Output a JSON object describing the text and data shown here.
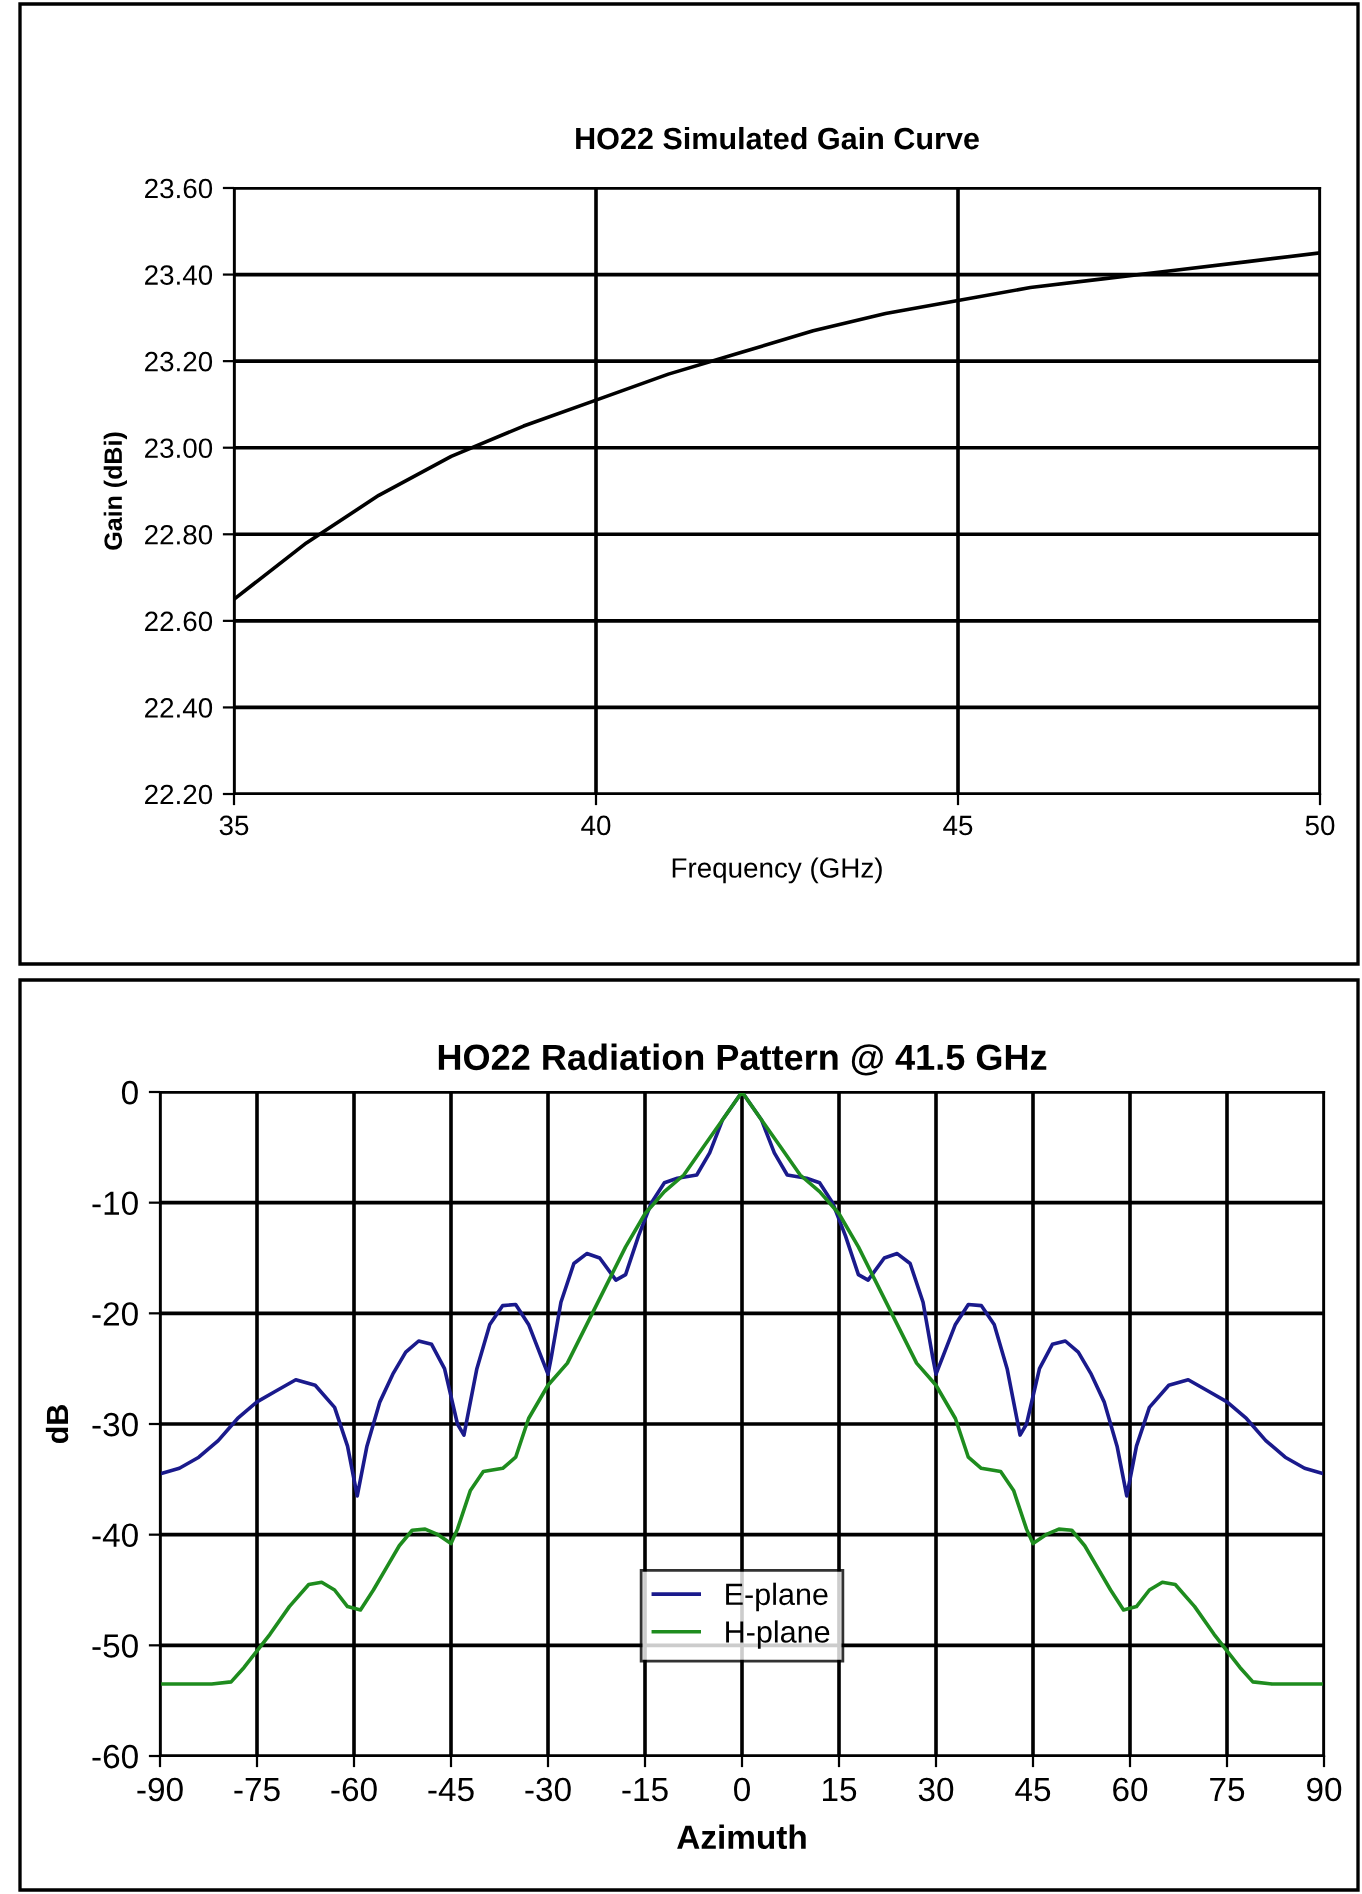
{
  "chart_data": [
    {
      "type": "line",
      "title": "HO22 Simulated Gain Curve",
      "xlabel": "Frequency (GHz)",
      "ylabel": "Gain (dBi)",
      "xlim": [
        35,
        50
      ],
      "xticks": [
        35,
        40,
        45,
        50
      ],
      "ylim": [
        22.2,
        23.6
      ],
      "yticks": [
        {
          "value": 22.2,
          "label": "22.20"
        },
        {
          "value": 22.4,
          "label": "22.40"
        },
        {
          "value": 22.6,
          "label": "22.60"
        },
        {
          "value": 22.8,
          "label": "22.80"
        },
        {
          "value": 23.0,
          "label": "23.00"
        },
        {
          "value": 23.2,
          "label": "23.20"
        },
        {
          "value": 23.4,
          "label": "23.40"
        },
        {
          "value": 23.6,
          "label": "23.60"
        }
      ],
      "grid": true,
      "legend": false,
      "series": [
        {
          "color": "#000000",
          "x": [
            35,
            36,
            37,
            38,
            39,
            40,
            41,
            42,
            43,
            44,
            45,
            46,
            47,
            48,
            49,
            50
          ],
          "values": [
            22.65,
            22.78,
            22.89,
            22.98,
            23.05,
            23.11,
            23.17,
            23.22,
            23.27,
            23.31,
            23.34,
            23.37,
            23.39,
            23.41,
            23.43,
            23.45
          ]
        }
      ]
    },
    {
      "type": "line",
      "title": "HO22 Radiation Pattern @ 41.5 GHz",
      "xlabel": "Azimuth",
      "ylabel": "dB",
      "xlim": [
        -90,
        90
      ],
      "xticks": [
        -90,
        -75,
        -60,
        -45,
        -30,
        -15,
        0,
        15,
        30,
        45,
        60,
        75,
        90
      ],
      "ylim": [
        -60,
        0
      ],
      "yticks": [
        -60,
        -50,
        -40,
        -30,
        -20,
        -10,
        0
      ],
      "grid": true,
      "legend": "bottom",
      "series": [
        {
          "name": "E-plane",
          "color": "#1a1a8c",
          "x": [
            -90,
            -87,
            -84,
            -81,
            -78,
            -75,
            -72,
            -69,
            -66,
            -63,
            -61,
            -59.5,
            -58,
            -56,
            -54,
            -52,
            -50,
            -48,
            -46,
            -44,
            -43,
            -41,
            -39,
            -37,
            -35,
            -33,
            -31,
            -30,
            -29.5,
            -28,
            -26,
            -24,
            -22,
            -19.5,
            -18,
            -16,
            -14,
            -12,
            -10,
            -7,
            -5,
            -3,
            0,
            3,
            5,
            7,
            10,
            12,
            14,
            16,
            18,
            19.5,
            22,
            24,
            26,
            28,
            29.5,
            30,
            31,
            33,
            35,
            37,
            39,
            41,
            43,
            44,
            46,
            48,
            50,
            52,
            54,
            56,
            58,
            59.5,
            61,
            63,
            66,
            69,
            72,
            75,
            78,
            81,
            84,
            87,
            90
          ],
          "values": [
            -34.5,
            -34,
            -33,
            -31.5,
            -29.5,
            -28,
            -27,
            -26,
            -26.5,
            -28.5,
            -32,
            -36.5,
            -32,
            -28,
            -25.5,
            -23.5,
            -22.5,
            -22.8,
            -25,
            -30,
            -31,
            -25,
            -21,
            -19.3,
            -19.2,
            -21,
            -24,
            -25.5,
            -24,
            -19,
            -15.5,
            -14.6,
            -15,
            -17,
            -16.5,
            -13,
            -10,
            -8.2,
            -7.8,
            -7.5,
            -5.5,
            -2.5,
            0,
            -2.5,
            -5.5,
            -7.5,
            -7.8,
            -8.2,
            -10,
            -13,
            -16.5,
            -17,
            -15,
            -14.6,
            -15.5,
            -19,
            -24,
            -25.5,
            -24,
            -21,
            -19.2,
            -19.3,
            -21,
            -25,
            -31,
            -30,
            -25,
            -22.8,
            -22.5,
            -23.5,
            -25.5,
            -28,
            -32,
            -36.5,
            -32,
            -28.5,
            -26.5,
            -26,
            -27,
            -28,
            -29.5,
            -31.5,
            -33,
            -34,
            -34.5
          ]
        },
        {
          "name": "H-plane",
          "color": "#1e8c1e",
          "x": [
            -90,
            -82,
            -79,
            -77,
            -75,
            -73,
            -70,
            -67,
            -65,
            -63,
            -61,
            -59,
            -57,
            -55,
            -53,
            -51,
            -49,
            -47,
            -45,
            -44,
            -42,
            -40,
            -37,
            -35,
            -33,
            -30,
            -27,
            -24,
            -21,
            -18,
            -15,
            -12,
            -9,
            -6,
            -3,
            0,
            3,
            6,
            9,
            12,
            15,
            18,
            21,
            24,
            27,
            30,
            33,
            35,
            37,
            40,
            42,
            44,
            45,
            47,
            49,
            51,
            53,
            55,
            57,
            59,
            61,
            63,
            65,
            67,
            70,
            73,
            75,
            77,
            79,
            82,
            90
          ],
          "values": [
            -53.5,
            -53.5,
            -53.3,
            -52,
            -50.5,
            -49,
            -46.5,
            -44.5,
            -44.3,
            -45,
            -46.5,
            -46.8,
            -45,
            -43,
            -41,
            -39.6,
            -39.5,
            -40,
            -40.8,
            -39.5,
            -36,
            -34.3,
            -34,
            -33,
            -29.5,
            -26.5,
            -24.5,
            -21,
            -17.5,
            -14,
            -11,
            -9,
            -7.5,
            -5,
            -2.5,
            0,
            -2.5,
            -5,
            -7.5,
            -9,
            -11,
            -14,
            -17.5,
            -21,
            -24.5,
            -26.5,
            -29.5,
            -33,
            -34,
            -34.3,
            -36,
            -39.5,
            -40.8,
            -40,
            -39.5,
            -39.6,
            -41,
            -43,
            -45,
            -46.8,
            -46.5,
            -45,
            -44.3,
            -44.5,
            -46.5,
            -49,
            -50.5,
            -52,
            -53.3,
            -53.5,
            -53.5
          ]
        }
      ]
    }
  ]
}
